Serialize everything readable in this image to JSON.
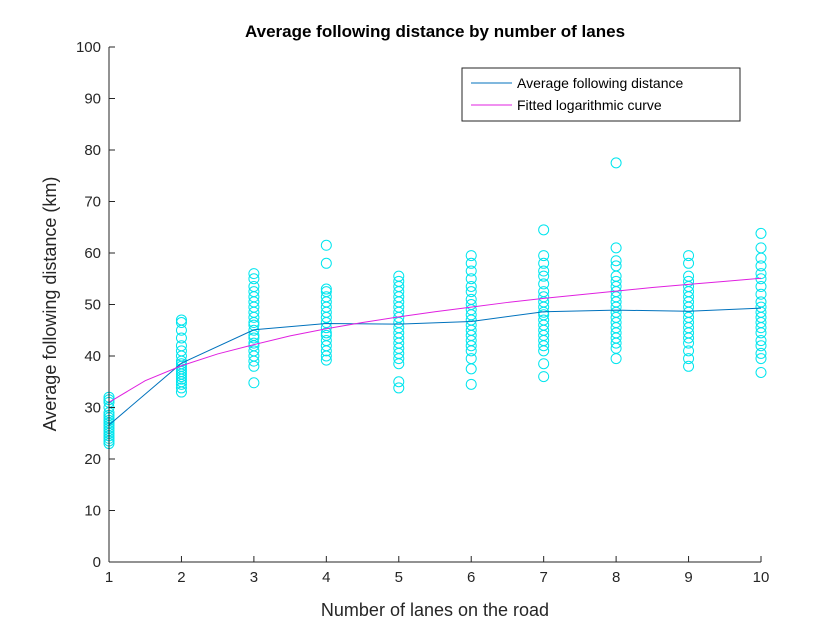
{
  "chart_data": {
    "type": "scatter",
    "title": "Average following distance by number of lanes",
    "xlabel": "Number of lanes on the road",
    "ylabel": "Average following distance (km)",
    "xlim": [
      1,
      10
    ],
    "ylim": [
      0,
      100
    ],
    "xticks": [
      1,
      2,
      3,
      4,
      5,
      6,
      7,
      8,
      9,
      10
    ],
    "yticks": [
      0,
      10,
      20,
      30,
      40,
      50,
      60,
      70,
      80,
      90,
      100
    ],
    "grid": false,
    "legend_position": "top-right",
    "colors": {
      "scatter": "#00e5ee",
      "average_line": "#0072bd",
      "fit_line": "#e020e0"
    },
    "scatter_points": [
      {
        "x": 1,
        "y": [
          23,
          23.5,
          24,
          24.5,
          25,
          25.5,
          26,
          26.5,
          27,
          27.5,
          28,
          28.5,
          29,
          30,
          31,
          31.5,
          32
        ]
      },
      {
        "x": 2,
        "y": [
          33,
          33.8,
          34.5,
          35,
          35.5,
          36,
          36.5,
          37,
          37.5,
          38,
          38.5,
          39,
          40,
          41,
          42,
          43.5,
          45,
          46.5,
          47
        ]
      },
      {
        "x": 3,
        "y": [
          34.8,
          38,
          39,
          40,
          41,
          42,
          42.5,
          43.5,
          44,
          45,
          46,
          46.5,
          47.5,
          48.5,
          49.5,
          50.5,
          51.5,
          52.5,
          53.5,
          55,
          56
        ]
      },
      {
        "x": 4,
        "y": [
          39.2,
          40,
          41,
          42,
          43,
          44,
          44.5,
          45.5,
          46.5,
          47.5,
          48.5,
          49.5,
          50.5,
          51.5,
          52.5,
          53,
          58,
          61.5
        ]
      },
      {
        "x": 5,
        "y": [
          33.8,
          35,
          38.5,
          39.5,
          40.5,
          41.5,
          42.5,
          43.5,
          44.5,
          45.5,
          46.5,
          47.5,
          48.5,
          49.5,
          50.5,
          51.5,
          52.5,
          53.5,
          54.5,
          55.5
        ]
      },
      {
        "x": 6,
        "y": [
          34.5,
          37.5,
          39.5,
          41,
          42,
          43,
          44,
          45,
          46,
          47,
          48,
          49,
          50,
          51,
          52.5,
          53.5,
          55,
          56.5,
          58,
          59.5
        ]
      },
      {
        "x": 7,
        "y": [
          36,
          38.5,
          41,
          42,
          43,
          44,
          45,
          46,
          47,
          48,
          48.5,
          49.5,
          50.5,
          51.5,
          52.5,
          54,
          55.5,
          56.5,
          58,
          59.5,
          64.5
        ]
      },
      {
        "x": 8,
        "y": [
          39.5,
          41.5,
          42.5,
          43.5,
          44.5,
          45.5,
          46.5,
          47.5,
          48.5,
          49.5,
          50.5,
          51.5,
          52.5,
          53.5,
          54.5,
          55.5,
          57.5,
          58.5,
          61,
          77.5
        ]
      },
      {
        "x": 9,
        "y": [
          38,
          39.5,
          41,
          42.5,
          43.5,
          44.5,
          45.5,
          46.5,
          47.5,
          48.5,
          49.5,
          50.5,
          51.5,
          52.5,
          53.5,
          54.5,
          55.5,
          58,
          59.5
        ]
      },
      {
        "x": 10,
        "y": [
          36.8,
          39.5,
          40.5,
          42,
          43,
          44.5,
          45.5,
          46.5,
          47.5,
          48.5,
          49.5,
          50.5,
          52,
          53.5,
          55,
          56,
          57.5,
          59,
          61,
          63.8
        ]
      }
    ],
    "series": [
      {
        "name": "Average following distance",
        "x": [
          1,
          2,
          3,
          4,
          5,
          6,
          7,
          8,
          9,
          10
        ],
        "values": [
          26.6,
          38.6,
          45.1,
          46.3,
          46.2,
          46.7,
          48.6,
          48.9,
          48.7,
          49.3
        ]
      },
      {
        "name": "Fitted logarithmic curve",
        "x": [
          1,
          1.5,
          2,
          2.5,
          3,
          3.5,
          4,
          4.5,
          5,
          5.5,
          6,
          6.5,
          7,
          7.5,
          8,
          8.5,
          9,
          9.5,
          10
        ],
        "values": [
          31,
          35.2,
          38.1,
          40.4,
          42.2,
          43.9,
          45.3,
          46.5,
          47.6,
          48.6,
          49.5,
          50.4,
          51.2,
          51.9,
          52.6,
          53.3,
          53.9,
          54.5,
          55.1
        ]
      }
    ]
  }
}
